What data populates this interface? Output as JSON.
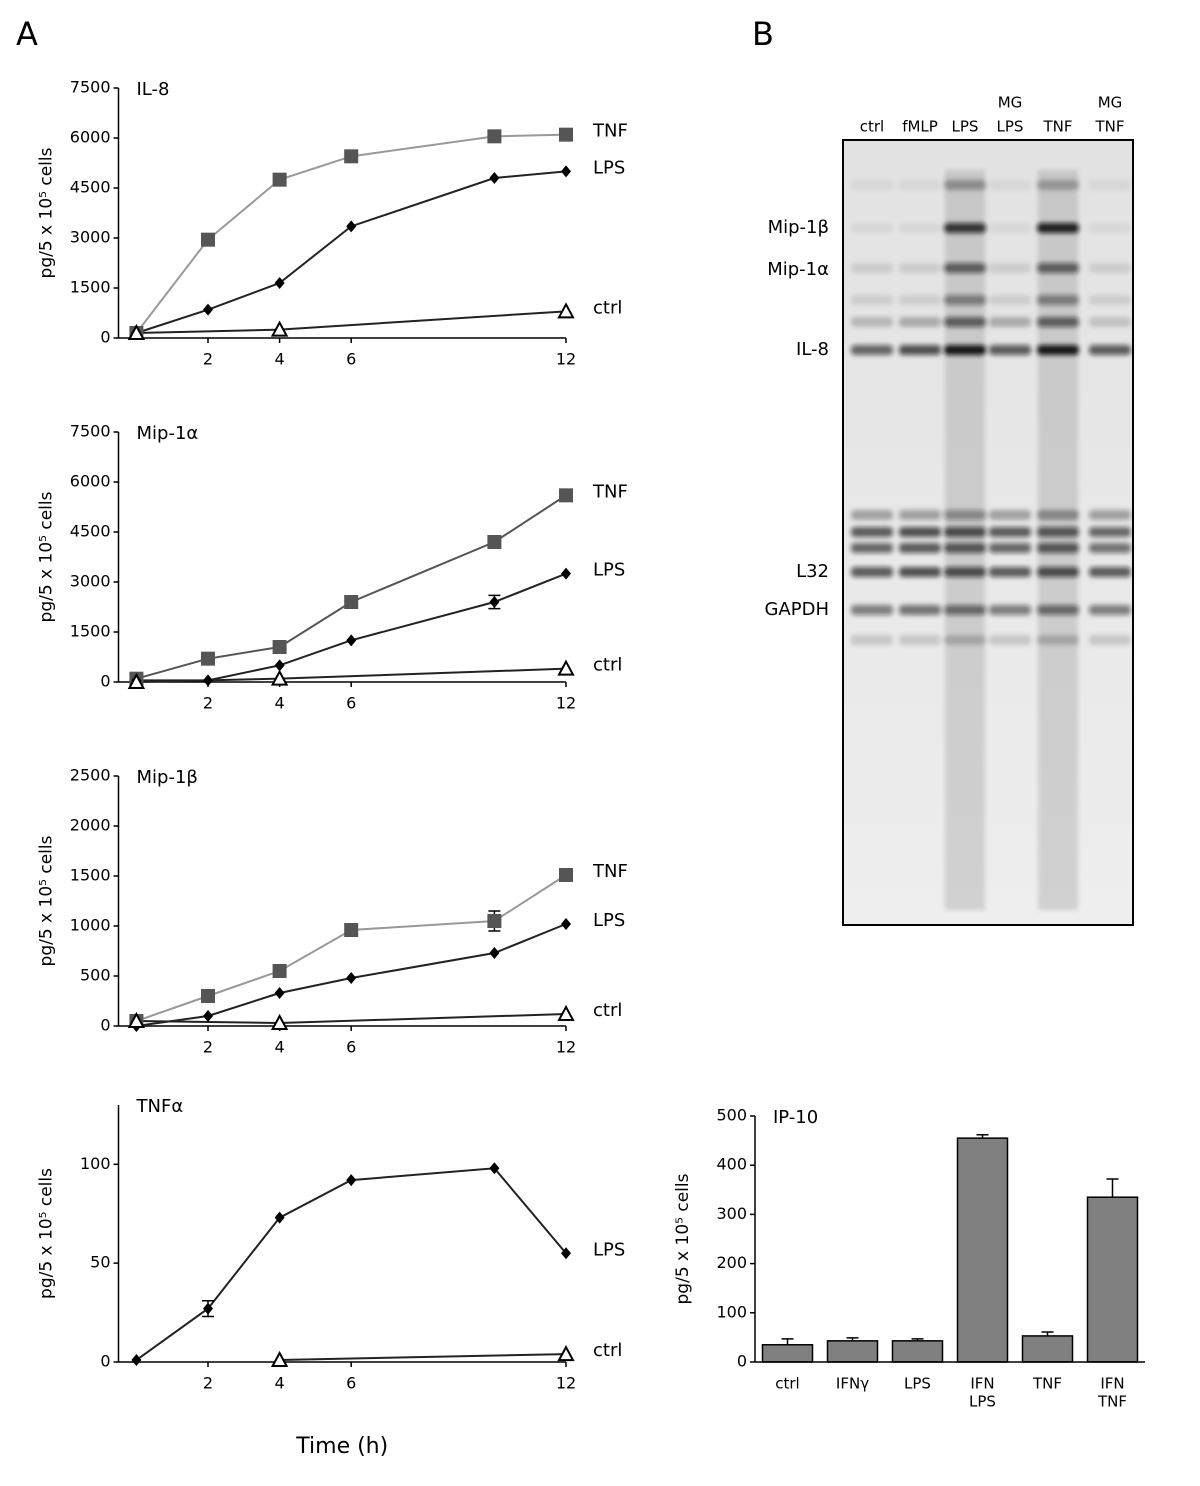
{
  "panel_labels": [
    "A",
    "B"
  ],
  "chart_data": [
    {
      "type": "line",
      "title": "IL-8",
      "ylabel": "pg/5 x 10⁵ cells",
      "xlim": [
        -0.5,
        12
      ],
      "xticks": [
        2,
        4,
        6,
        12
      ],
      "ylim": [
        0,
        7500
      ],
      "yticks": [
        0,
        1500,
        3000,
        4500,
        6000,
        7500
      ],
      "series": [
        {
          "name": "TNF",
          "color": "#555555",
          "line_color": "#999999",
          "marker": "square",
          "x": [
            0,
            2,
            4,
            6,
            10,
            12
          ],
          "values": [
            150,
            2950,
            4750,
            5450,
            6050,
            6100
          ]
        },
        {
          "name": "LPS",
          "color": "#000000",
          "line_color": "#222222",
          "marker": "diamond",
          "x": [
            0,
            2,
            4,
            6,
            10,
            12
          ],
          "values": [
            150,
            850,
            1650,
            3350,
            4800,
            5000
          ]
        },
        {
          "name": "ctrl",
          "color": "#ffffff",
          "line_color": "#222222",
          "marker": "triangle",
          "x": [
            0,
            4,
            12
          ],
          "values": [
            150,
            250,
            800
          ]
        }
      ]
    },
    {
      "type": "line",
      "title": "Mip-1α",
      "ylabel": "pg/5 x 10⁵ cells",
      "xlim": [
        -0.5,
        12
      ],
      "xticks": [
        2,
        4,
        6,
        12
      ],
      "ylim": [
        0,
        7500
      ],
      "yticks": [
        0,
        1500,
        3000,
        4500,
        6000,
        7500
      ],
      "series": [
        {
          "name": "TNF",
          "color": "#555555",
          "line_color": "#555555",
          "marker": "square",
          "x": [
            0,
            2,
            4,
            6,
            10,
            12
          ],
          "values": [
            100,
            700,
            1050,
            2400,
            4200,
            5600
          ]
        },
        {
          "name": "LPS",
          "color": "#000000",
          "line_color": "#222222",
          "marker": "diamond",
          "x": [
            0,
            2,
            4,
            6,
            10,
            12
          ],
          "values": [
            50,
            50,
            500,
            1250,
            2400,
            3250
          ],
          "errors": [
            null,
            null,
            null,
            null,
            200,
            null
          ]
        },
        {
          "name": "ctrl",
          "color": "#ffffff",
          "line_color": "#222222",
          "marker": "triangle",
          "x": [
            0,
            4,
            12
          ],
          "values": [
            0,
            100,
            400
          ]
        }
      ]
    },
    {
      "type": "line",
      "title": "Mip-1β",
      "ylabel": "pg/5 x 10⁵ cells",
      "xlim": [
        -0.5,
        12
      ],
      "xticks": [
        2,
        4,
        6,
        12
      ],
      "ylim": [
        0,
        2500
      ],
      "yticks": [
        0,
        500,
        1000,
        1500,
        2000,
        2500
      ],
      "series": [
        {
          "name": "TNF",
          "color": "#555555",
          "line_color": "#999999",
          "marker": "square",
          "x": [
            0,
            2,
            4,
            6,
            10,
            12
          ],
          "values": [
            50,
            300,
            550,
            960,
            1050,
            1510
          ],
          "errors": [
            null,
            null,
            null,
            null,
            100,
            null
          ]
        },
        {
          "name": "LPS",
          "color": "#000000",
          "line_color": "#222222",
          "marker": "diamond",
          "x": [
            0,
            2,
            4,
            6,
            10,
            12
          ],
          "values": [
            0,
            100,
            330,
            480,
            730,
            1020
          ]
        },
        {
          "name": "ctrl",
          "color": "#ffffff",
          "line_color": "#222222",
          "marker": "triangle",
          "x": [
            0,
            4,
            12
          ],
          "values": [
            50,
            30,
            120
          ]
        }
      ]
    },
    {
      "type": "line",
      "title": "TNFα",
      "ylabel": "pg/5 x 10⁵ cells",
      "xlabel": "Time (h)",
      "xlim": [
        -0.5,
        12
      ],
      "xticks": [
        2,
        4,
        6,
        12
      ],
      "ylim": [
        0,
        130
      ],
      "yticks": [
        0,
        50,
        100
      ],
      "series": [
        {
          "name": "LPS",
          "color": "#000000",
          "line_color": "#222222",
          "marker": "diamond",
          "x": [
            0,
            2,
            4,
            6,
            10,
            12
          ],
          "values": [
            1,
            27,
            73,
            92,
            98,
            55
          ],
          "errors": [
            null,
            4,
            null,
            null,
            null,
            null
          ]
        },
        {
          "name": "ctrl",
          "color": "#ffffff",
          "line_color": "#222222",
          "marker": "triangle",
          "x": [
            4,
            12
          ],
          "values": [
            1,
            4
          ]
        }
      ]
    },
    {
      "type": "bar",
      "title": "IP-10",
      "ylabel": "pg/5 x 10⁵ cells",
      "color": "#808080",
      "categories": [
        [
          "ctrl"
        ],
        [
          "IFNγ"
        ],
        [
          "LPS"
        ],
        [
          "IFN",
          "LPS"
        ],
        [
          "TNF"
        ],
        [
          "IFN",
          "TNF"
        ]
      ],
      "values": [
        35,
        43,
        43,
        455,
        53,
        335
      ],
      "errors": [
        12,
        6,
        4,
        7,
        8,
        37
      ],
      "ylim": [
        0,
        500
      ],
      "yticks": [
        0,
        100,
        200,
        300,
        400,
        500
      ]
    }
  ],
  "gel": {
    "lanes": [
      [
        "ctrl"
      ],
      [
        "fMLP"
      ],
      [
        "LPS"
      ],
      [
        "MG",
        "LPS"
      ],
      [
        "TNF"
      ],
      [
        "MG",
        "TNF"
      ]
    ],
    "bands": [
      "Mip-1β",
      "Mip-1α",
      "IL-8",
      "L32",
      "GAPDH"
    ]
  }
}
